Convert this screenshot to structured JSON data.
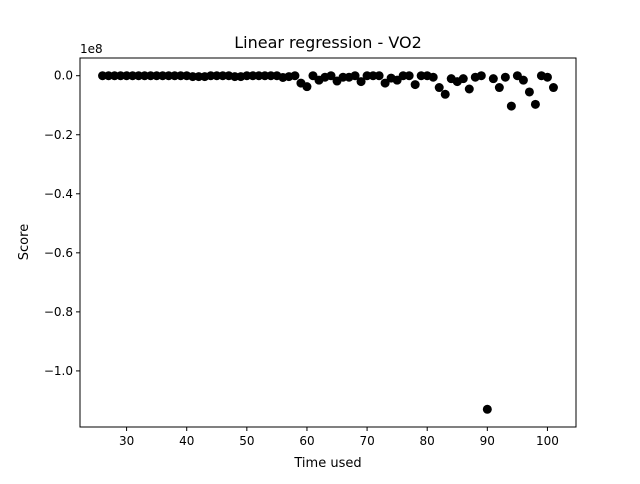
{
  "chart_data": {
    "type": "scatter",
    "title": "Linear regression - VO2",
    "xlabel": "Time used",
    "ylabel": "Score",
    "offset_label": "1e8",
    "xlim": [
      22.25,
      104.75
    ],
    "ylim": [
      -1.19,
      0.06
    ],
    "xticks": [
      30,
      40,
      50,
      60,
      70,
      80,
      90,
      100
    ],
    "xtick_labels": [
      "30",
      "40",
      "50",
      "60",
      "70",
      "80",
      "90",
      "100"
    ],
    "yticks": [
      0.0,
      -0.2,
      -0.4,
      -0.6,
      -0.8,
      -1.0
    ],
    "ytick_labels": [
      "0.0",
      "−0.2",
      "−0.4",
      "−0.6",
      "−0.8",
      "−1.0"
    ],
    "grid": false,
    "marker_color": "#000000",
    "points": [
      [
        26,
        0.0
      ],
      [
        27,
        0.0
      ],
      [
        28,
        0.0
      ],
      [
        29,
        0.0
      ],
      [
        30,
        0.0
      ],
      [
        31,
        0.0
      ],
      [
        32,
        0.0
      ],
      [
        33,
        0.0
      ],
      [
        34,
        0.0
      ],
      [
        35,
        0.0
      ],
      [
        36,
        0.0
      ],
      [
        37,
        0.0
      ],
      [
        38,
        0.0
      ],
      [
        39,
        0.0
      ],
      [
        40,
        0.0
      ],
      [
        41,
        -0.003
      ],
      [
        42,
        -0.003
      ],
      [
        43,
        -0.003
      ],
      [
        44,
        0.0
      ],
      [
        45,
        0.0
      ],
      [
        46,
        0.0
      ],
      [
        47,
        0.0
      ],
      [
        48,
        -0.003
      ],
      [
        49,
        -0.003
      ],
      [
        50,
        0.0
      ],
      [
        51,
        0.0
      ],
      [
        52,
        0.0
      ],
      [
        53,
        0.0
      ],
      [
        54,
        0.0
      ],
      [
        55,
        0.0
      ],
      [
        56,
        -0.006
      ],
      [
        57,
        -0.003
      ],
      [
        58,
        0.0
      ],
      [
        59,
        -0.025
      ],
      [
        60,
        -0.037
      ],
      [
        61,
        0.0
      ],
      [
        62,
        -0.015
      ],
      [
        63,
        -0.005
      ],
      [
        64,
        0.0
      ],
      [
        65,
        -0.018
      ],
      [
        66,
        -0.005
      ],
      [
        67,
        -0.005
      ],
      [
        68,
        0.0
      ],
      [
        69,
        -0.02
      ],
      [
        70,
        0.0
      ],
      [
        71,
        0.0
      ],
      [
        72,
        0.0
      ],
      [
        73,
        -0.025
      ],
      [
        74,
        -0.008
      ],
      [
        75,
        -0.015
      ],
      [
        76,
        0.0
      ],
      [
        77,
        0.0
      ],
      [
        78,
        -0.03
      ],
      [
        79,
        0.0
      ],
      [
        80,
        0.0
      ],
      [
        81,
        -0.005
      ],
      [
        82,
        -0.04
      ],
      [
        83,
        -0.063
      ],
      [
        84,
        -0.01
      ],
      [
        85,
        -0.02
      ],
      [
        86,
        -0.01
      ],
      [
        87,
        -0.045
      ],
      [
        88,
        -0.005
      ],
      [
        89,
        0.0
      ],
      [
        90,
        -1.13
      ],
      [
        91,
        -0.01
      ],
      [
        92,
        -0.04
      ],
      [
        93,
        -0.005
      ],
      [
        94,
        -0.103
      ],
      [
        95,
        0.0
      ],
      [
        96,
        -0.015
      ],
      [
        97,
        -0.055
      ],
      [
        98,
        -0.097
      ],
      [
        99,
        0.0
      ],
      [
        100,
        -0.005
      ],
      [
        101,
        -0.04
      ]
    ]
  }
}
